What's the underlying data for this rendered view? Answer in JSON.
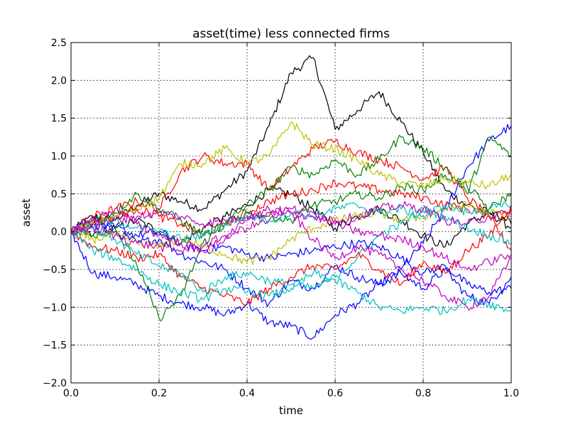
{
  "chart_data": {
    "type": "line",
    "title": "asset(time) less connected firms",
    "xlabel": "time",
    "ylabel": "asset",
    "xlim": [
      0.0,
      1.0
    ],
    "ylim": [
      -2.0,
      2.5
    ],
    "xticks": [
      0.0,
      0.2,
      0.4,
      0.6,
      0.8,
      1.0
    ],
    "yticks": [
      -2.0,
      -1.5,
      -1.0,
      -0.5,
      0.0,
      0.5,
      1.0,
      1.5,
      2.0,
      2.5
    ],
    "xtick_labels": [
      "0.0",
      "0.2",
      "0.4",
      "0.6",
      "0.8",
      "1.0"
    ],
    "ytick_labels": [
      "−2.0",
      "−1.5",
      "−1.0",
      "−0.5",
      "0.0",
      "0.5",
      "1.0",
      "1.5",
      "2.0",
      "2.5"
    ],
    "grid": true,
    "legend": "none",
    "x": [
      0.0,
      0.05,
      0.1,
      0.15,
      0.2,
      0.25,
      0.3,
      0.35,
      0.4,
      0.45,
      0.5,
      0.55,
      0.6,
      0.65,
      0.7,
      0.75,
      0.8,
      0.85,
      0.9,
      0.95,
      1.0
    ],
    "series": [
      {
        "color": "#000000",
        "values": [
          0.0,
          0.2,
          0.15,
          0.35,
          0.5,
          0.4,
          0.3,
          0.55,
          0.8,
          1.4,
          2.1,
          2.3,
          1.35,
          1.6,
          1.85,
          1.45,
          1.05,
          0.55,
          0.35,
          0.25,
          0.05
        ]
      },
      {
        "color": "#000000",
        "values": [
          0.0,
          -0.05,
          0.05,
          0.15,
          0.0,
          -0.15,
          0.05,
          0.2,
          0.35,
          0.55,
          0.5,
          0.3,
          0.05,
          0.2,
          0.3,
          0.15,
          -0.05,
          -0.2,
          0.1,
          0.25,
          0.1
        ]
      },
      {
        "color": "#0000ff",
        "values": [
          0.0,
          -0.55,
          -0.6,
          -0.7,
          -0.85,
          -0.95,
          -1.0,
          -1.1,
          -0.95,
          -1.2,
          -1.25,
          -1.4,
          -1.1,
          -0.95,
          -0.7,
          -0.5,
          -0.15,
          0.3,
          0.85,
          1.2,
          1.4
        ]
      },
      {
        "color": "#0000ff",
        "values": [
          0.0,
          0.2,
          0.0,
          -0.15,
          -0.1,
          -0.3,
          -0.4,
          -0.5,
          -0.75,
          -0.95,
          -0.65,
          -0.75,
          -0.45,
          -0.6,
          -0.7,
          -0.55,
          -0.75,
          -0.5,
          -0.85,
          -0.95,
          -0.6
        ]
      },
      {
        "color": "#0000ff",
        "values": [
          0.0,
          0.1,
          0.05,
          -0.05,
          0.0,
          -0.15,
          -0.25,
          -0.2,
          -0.3,
          -0.35,
          -0.3,
          -0.25,
          -0.2,
          -0.15,
          -0.2,
          -0.35,
          -0.55,
          -0.45,
          -0.7,
          -0.8,
          -0.75
        ]
      },
      {
        "color": "#ff0000",
        "values": [
          0.0,
          0.2,
          0.3,
          0.4,
          0.3,
          0.8,
          1.0,
          0.9,
          0.9,
          0.55,
          0.85,
          1.1,
          1.2,
          1.05,
          0.95,
          0.85,
          0.7,
          0.85,
          0.45,
          0.2,
          -0.25
        ]
      },
      {
        "color": "#ff0000",
        "values": [
          0.0,
          -0.2,
          -0.25,
          -0.35,
          -0.3,
          -0.6,
          -0.75,
          -0.85,
          -0.95,
          -0.75,
          -0.6,
          -0.45,
          -0.5,
          -0.3,
          -0.5,
          -0.7,
          -0.4,
          -0.55,
          -0.25,
          -0.05,
          0.35
        ]
      },
      {
        "color": "#ff0000",
        "values": [
          0.0,
          0.1,
          0.2,
          0.3,
          0.2,
          0.1,
          -0.05,
          0.1,
          0.25,
          0.4,
          0.5,
          0.55,
          0.65,
          0.6,
          0.55,
          0.5,
          0.45,
          0.35,
          0.3,
          0.2,
          0.3
        ]
      },
      {
        "color": "#008000",
        "values": [
          0.0,
          -0.05,
          0.05,
          -0.45,
          -1.15,
          -0.85,
          -0.15,
          0.1,
          0.35,
          0.55,
          0.85,
          0.75,
          0.95,
          0.75,
          0.95,
          1.25,
          1.1,
          0.85,
          0.5,
          1.25,
          1.0
        ]
      },
      {
        "color": "#008000",
        "values": [
          0.0,
          0.15,
          0.25,
          0.5,
          0.3,
          0.15,
          -0.05,
          0.1,
          0.25,
          0.2,
          0.15,
          0.35,
          0.4,
          0.5,
          0.45,
          0.6,
          0.55,
          0.75,
          0.6,
          0.3,
          0.5
        ]
      },
      {
        "color": "#bfbf00",
        "values": [
          0.0,
          0.1,
          0.2,
          0.3,
          0.45,
          0.9,
          0.9,
          1.1,
          0.9,
          1.0,
          1.45,
          1.15,
          1.1,
          0.95,
          0.75,
          0.65,
          0.6,
          0.7,
          0.65,
          0.6,
          0.75
        ]
      },
      {
        "color": "#bfbf00",
        "values": [
          0.0,
          -0.1,
          -0.05,
          -0.15,
          -0.2,
          -0.1,
          -0.2,
          -0.3,
          -0.4,
          -0.35,
          -0.1,
          0.05,
          0.15,
          0.2,
          0.25,
          0.15,
          0.2,
          0.3,
          0.35,
          0.25,
          0.2
        ]
      },
      {
        "color": "#00bfbf",
        "values": [
          0.0,
          -0.25,
          -0.35,
          -0.5,
          -0.7,
          -0.8,
          -0.9,
          -0.75,
          -0.8,
          -0.85,
          -0.75,
          -0.55,
          -0.65,
          -0.8,
          -1.0,
          -1.05,
          -1.0,
          -1.05,
          -0.9,
          -0.95,
          -1.05
        ]
      },
      {
        "color": "#00bfbf",
        "values": [
          0.0,
          0.05,
          -0.1,
          -0.3,
          -0.45,
          -0.55,
          -0.8,
          -0.6,
          -0.55,
          -0.65,
          -0.7,
          -0.75,
          -0.6,
          -0.35,
          -0.05,
          0.1,
          0.3,
          0.2,
          0.05,
          -0.05,
          -0.15
        ]
      },
      {
        "color": "#00bfbf",
        "values": [
          0.0,
          0.05,
          0.15,
          0.05,
          0.0,
          -0.1,
          -0.05,
          0.1,
          0.2,
          0.15,
          0.25,
          0.2,
          0.3,
          0.35,
          0.25,
          0.3,
          0.2,
          0.35,
          0.25,
          0.3,
          0.35
        ]
      },
      {
        "color": "#bf00bf",
        "values": [
          0.0,
          0.15,
          0.3,
          0.1,
          -0.05,
          -0.15,
          -0.25,
          -0.1,
          0.15,
          0.3,
          0.25,
          -0.1,
          -0.35,
          -0.2,
          -0.3,
          -0.5,
          -0.65,
          -0.85,
          -1.0,
          -0.85,
          -0.35
        ]
      },
      {
        "color": "#bf00bf",
        "values": [
          0.0,
          0.05,
          -0.05,
          -0.15,
          -0.2,
          -0.25,
          -0.2,
          -0.05,
          0.05,
          0.15,
          0.25,
          0.2,
          0.1,
          0.0,
          -0.05,
          -0.1,
          -0.2,
          -0.35,
          -0.5,
          -0.4,
          -0.3
        ]
      },
      {
        "color": "#bf00bf",
        "values": [
          0.0,
          0.1,
          0.15,
          0.2,
          0.25,
          0.2,
          0.1,
          0.15,
          0.2,
          0.25,
          0.3,
          0.25,
          0.15,
          0.2,
          0.3,
          0.35,
          0.3,
          0.15,
          0.1,
          0.2,
          0.25
        ]
      }
    ]
  }
}
